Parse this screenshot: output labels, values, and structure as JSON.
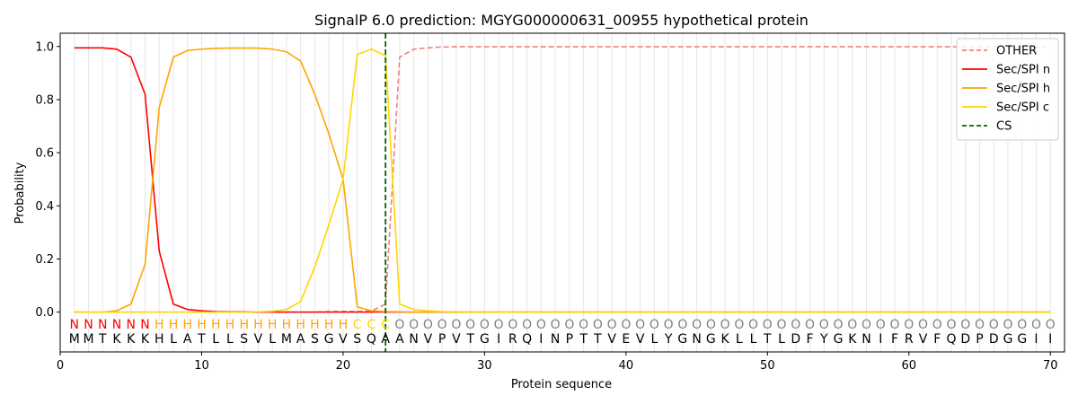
{
  "chart_data": {
    "type": "line",
    "title": "SignalP 6.0 prediction: MGYG000000631_00955 hypothetical protein",
    "xlabel": "Protein sequence",
    "ylabel": "Probability",
    "xlim": [
      0,
      71
    ],
    "ylim": [
      -0.15,
      1.05
    ],
    "xticks": [
      0,
      10,
      20,
      30,
      40,
      50,
      60,
      70
    ],
    "yticks": [
      0.0,
      0.2,
      0.4,
      0.6,
      0.8,
      1.0
    ],
    "grid": "vertical lines at each residue",
    "legend_position": "top-right",
    "x": [
      1,
      2,
      3,
      4,
      5,
      6,
      7,
      8,
      9,
      10,
      11,
      12,
      13,
      14,
      15,
      16,
      17,
      18,
      19,
      20,
      21,
      22,
      23,
      24,
      25,
      26,
      27,
      28,
      29,
      30,
      31,
      32,
      33,
      34,
      35,
      36,
      37,
      38,
      39,
      40,
      41,
      42,
      43,
      44,
      45,
      46,
      47,
      48,
      49,
      50,
      51,
      52,
      53,
      54,
      55,
      56,
      57,
      58,
      59,
      60,
      61,
      62,
      63,
      64,
      65,
      66,
      67,
      68,
      69,
      70
    ],
    "series": [
      {
        "name": "OTHER",
        "color": "#f08080",
        "dash": true,
        "values": [
          0,
          0,
          0,
          0,
          0,
          0,
          0,
          0,
          0,
          0,
          0,
          0,
          0,
          0,
          0,
          0,
          0,
          0,
          0.002,
          0.003,
          0.003,
          0.004,
          0.03,
          0.96,
          0.99,
          0.995,
          0.998,
          0.999,
          0.999,
          0.999,
          0.999,
          0.999,
          0.999,
          0.999,
          0.999,
          0.999,
          0.999,
          0.999,
          0.999,
          0.999,
          0.999,
          0.999,
          0.999,
          0.999,
          0.999,
          0.999,
          0.999,
          0.999,
          0.999,
          0.999,
          0.999,
          0.999,
          0.999,
          0.999,
          0.999,
          0.999,
          0.999,
          0.999,
          0.999,
          0.999,
          0.999,
          0.999,
          0.999,
          0.999,
          0.999,
          0.999,
          0.999,
          0.999,
          0.999,
          0.999
        ]
      },
      {
        "name": "Sec/SPI n",
        "color": "#ff0000",
        "dash": false,
        "values": [
          0.995,
          0.995,
          0.995,
          0.99,
          0.96,
          0.82,
          0.23,
          0.03,
          0.01,
          0.005,
          0.002,
          0.001,
          0.001,
          0,
          0,
          0,
          0,
          0,
          0,
          0,
          0,
          0,
          0,
          0,
          0,
          0,
          0,
          0,
          0,
          0,
          0,
          0,
          0,
          0,
          0,
          0,
          0,
          0,
          0,
          0,
          0,
          0,
          0,
          0,
          0,
          0,
          0,
          0,
          0,
          0,
          0,
          0,
          0,
          0,
          0,
          0,
          0,
          0,
          0,
          0,
          0,
          0,
          0,
          0,
          0,
          0,
          0,
          0,
          0,
          0
        ]
      },
      {
        "name": "Sec/SPI h",
        "color": "#ffa500",
        "dash": false,
        "values": [
          0,
          0,
          0,
          0.005,
          0.03,
          0.18,
          0.77,
          0.96,
          0.985,
          0.99,
          0.993,
          0.994,
          0.994,
          0.994,
          0.99,
          0.98,
          0.945,
          0.82,
          0.67,
          0.5,
          0.02,
          0.005,
          0.002,
          0.001,
          0,
          0,
          0,
          0,
          0,
          0,
          0,
          0,
          0,
          0,
          0,
          0,
          0,
          0,
          0,
          0,
          0,
          0,
          0,
          0,
          0,
          0,
          0,
          0,
          0,
          0,
          0,
          0,
          0,
          0,
          0,
          0,
          0,
          0,
          0,
          0,
          0,
          0,
          0,
          0,
          0,
          0,
          0,
          0,
          0,
          0
        ]
      },
      {
        "name": "Sec/SPI c",
        "color": "#ffd700",
        "dash": false,
        "values": [
          0,
          0,
          0,
          0,
          0,
          0,
          0,
          0,
          0,
          0,
          0,
          0,
          0,
          0.001,
          0.003,
          0.01,
          0.04,
          0.17,
          0.33,
          0.5,
          0.97,
          0.99,
          0.965,
          0.03,
          0.01,
          0.005,
          0.002,
          0.001,
          0,
          0,
          0,
          0,
          0,
          0,
          0,
          0,
          0,
          0,
          0,
          0,
          0,
          0,
          0,
          0,
          0,
          0,
          0,
          0,
          0,
          0,
          0,
          0,
          0,
          0,
          0,
          0,
          0,
          0,
          0,
          0,
          0,
          0,
          0,
          0,
          0,
          0,
          0,
          0,
          0,
          0
        ]
      }
    ],
    "cs": {
      "name": "CS",
      "x": 23,
      "color": "#006400"
    },
    "labels": {
      "sequence": "MMTKKKHLATLLSVLMASGVSQAANVPVTGIRQINPTTVEVLYGNGKLLTLDFYGKNIFRVFQDPDGGII",
      "annotation": "NNNNNNHHHHHHHHHHHHHHCCCOOOOOOOOOOOOOOOOOOOOOOOOOOOOOOOOOOOOOOOOOOOOOOO",
      "annotation_colors": {
        "N": "#ff0000",
        "H": "#ffa500",
        "C": "#ffd700",
        "O": "#808080"
      }
    }
  }
}
